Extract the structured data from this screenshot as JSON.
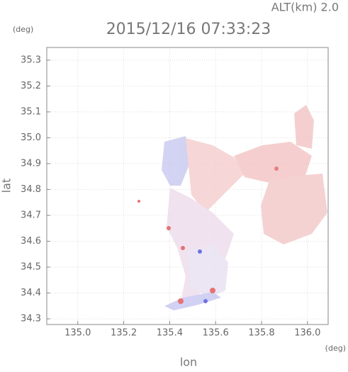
{
  "chart_data": {
    "type": "map",
    "title": "2015/12/16 07:33:23",
    "altitude_label": "ALT(km) 2.0",
    "y_unit": "(deg)",
    "x_unit": "(deg)",
    "x_label": "lon",
    "y_label": "lat",
    "xlim": [
      134.865,
      136.09
    ],
    "ylim": [
      34.278,
      35.349
    ],
    "xticks": [
      {
        "value": 135,
        "label": "135.0"
      },
      135.2,
      135.4,
      135.6,
      135.8,
      {
        "value": 136,
        "label": "136.0"
      }
    ],
    "yticks": [
      34.3,
      34.4,
      34.5,
      34.6,
      34.7,
      34.8,
      34.9,
      {
        "value": 35,
        "label": "35.0"
      },
      35.1,
      35.2,
      35.3
    ],
    "grid": true
  }
}
